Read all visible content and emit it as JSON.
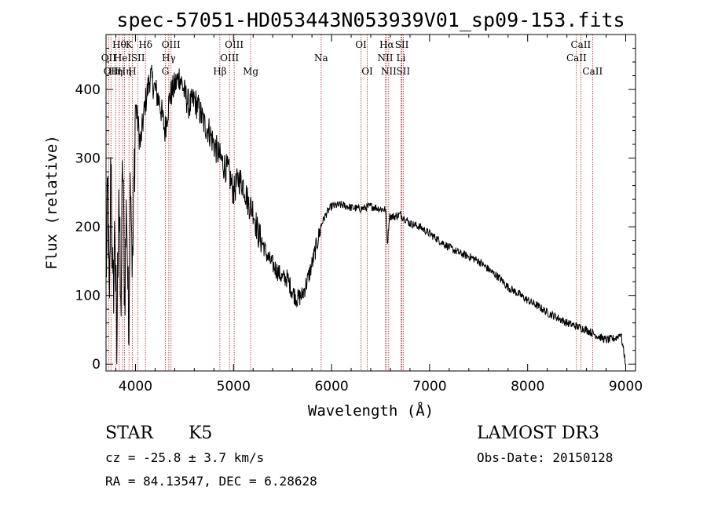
{
  "chart_data": {
    "type": "line",
    "title": "spec-57051-HD053443N053939V01_sp09-153.fits",
    "xlabel": "Wavelength (Å)",
    "ylabel": "Flux (relative)",
    "xlim": [
      3700,
      9100
    ],
    "ylim": [
      -10,
      480
    ],
    "x_ticks": [
      4000,
      5000,
      6000,
      7000,
      8000,
      9000
    ],
    "y_ticks": [
      0,
      100,
      200,
      300,
      400
    ],
    "grid": false,
    "series": [
      {
        "name": "flux",
        "anchors": [
          [
            3700,
            130
          ],
          [
            3720,
            250
          ],
          [
            3735,
            50
          ],
          [
            3750,
            330
          ],
          [
            3770,
            80
          ],
          [
            3790,
            200
          ],
          [
            3810,
            10
          ],
          [
            3830,
            280
          ],
          [
            3850,
            60
          ],
          [
            3870,
            300
          ],
          [
            3890,
            100
          ],
          [
            3910,
            240
          ],
          [
            3930,
            40
          ],
          [
            3950,
            310
          ],
          [
            3970,
            130
          ],
          [
            4000,
            380
          ],
          [
            4050,
            320
          ],
          [
            4100,
            380
          ],
          [
            4150,
            420
          ],
          [
            4200,
            400
          ],
          [
            4250,
            380
          ],
          [
            4300,
            340
          ],
          [
            4350,
            390
          ],
          [
            4400,
            405
          ],
          [
            4450,
            420
          ],
          [
            4500,
            395
          ],
          [
            4550,
            375
          ],
          [
            4600,
            385
          ],
          [
            4650,
            370
          ],
          [
            4700,
            350
          ],
          [
            4750,
            340
          ],
          [
            4800,
            320
          ],
          [
            4850,
            305
          ],
          [
            4900,
            290
          ],
          [
            4950,
            280
          ],
          [
            5000,
            250
          ],
          [
            5050,
            270
          ],
          [
            5100,
            262
          ],
          [
            5150,
            235
          ],
          [
            5200,
            225
          ],
          [
            5250,
            190
          ],
          [
            5300,
            175
          ],
          [
            5350,
            155
          ],
          [
            5400,
            145
          ],
          [
            5450,
            135
          ],
          [
            5500,
            125
          ],
          [
            5550,
            125
          ],
          [
            5600,
            105
          ],
          [
            5650,
            95
          ],
          [
            5700,
            100
          ],
          [
            5750,
            120
          ],
          [
            5800,
            145
          ],
          [
            5850,
            175
          ],
          [
            5900,
            205
          ],
          [
            5950,
            220
          ],
          [
            6000,
            230
          ],
          [
            6100,
            232
          ],
          [
            6200,
            228
          ],
          [
            6300,
            226
          ],
          [
            6400,
            230
          ],
          [
            6500,
            226
          ],
          [
            6550,
            225
          ],
          [
            6570,
            175
          ],
          [
            6590,
            215
          ],
          [
            6650,
            215
          ],
          [
            6700,
            218
          ],
          [
            6800,
            205
          ],
          [
            6900,
            200
          ],
          [
            7000,
            190
          ],
          [
            7100,
            180
          ],
          [
            7200,
            170
          ],
          [
            7300,
            162
          ],
          [
            7400,
            157
          ],
          [
            7500,
            150
          ],
          [
            7600,
            138
          ],
          [
            7700,
            127
          ],
          [
            7800,
            112
          ],
          [
            7900,
            103
          ],
          [
            8000,
            93
          ],
          [
            8100,
            85
          ],
          [
            8200,
            75
          ],
          [
            8300,
            68
          ],
          [
            8400,
            60
          ],
          [
            8500,
            55
          ],
          [
            8600,
            50
          ],
          [
            8700,
            42
          ],
          [
            8800,
            35
          ],
          [
            8900,
            38
          ],
          [
            8950,
            45
          ],
          [
            9000,
            0
          ]
        ]
      }
    ],
    "line_markers": [
      {
        "wavelength": 3727,
        "label": "OII",
        "row": 2
      },
      {
        "wavelength": 3750,
        "label": "OII",
        "row": 3
      },
      {
        "wavelength": 3798,
        "label": "Hη",
        "row": 3
      },
      {
        "wavelength": 3835,
        "label": "Hθ",
        "row": 1
      },
      {
        "wavelength": 3869,
        "label": "HeI",
        "row": 2
      },
      {
        "wavelength": 3889,
        "label": "Hη",
        "row": 3
      },
      {
        "wavelength": 3934,
        "label": "K",
        "row": 1
      },
      {
        "wavelength": 3968,
        "label": "H",
        "row": 3
      },
      {
        "wavelength": 4026,
        "label": "SII",
        "row": 2
      },
      {
        "wavelength": 4102,
        "label": "Hδ",
        "row": 1
      },
      {
        "wavelength": 4305,
        "label": "G",
        "row": 3
      },
      {
        "wavelength": 4340,
        "label": "Hγ",
        "row": 2
      },
      {
        "wavelength": 4363,
        "label": "OIII",
        "row": 1
      },
      {
        "wavelength": 4861,
        "label": "Hβ",
        "row": 3
      },
      {
        "wavelength": 4959,
        "label": "OIII",
        "row": 2
      },
      {
        "wavelength": 5007,
        "label": "OIII",
        "row": 1
      },
      {
        "wavelength": 5175,
        "label": "Mg",
        "row": 3
      },
      {
        "wavelength": 5894,
        "label": "Na",
        "row": 2
      },
      {
        "wavelength": 6300,
        "label": "OI",
        "row": 1
      },
      {
        "wavelength": 6364,
        "label": "OI",
        "row": 3
      },
      {
        "wavelength": 6548,
        "label": "NII",
        "row": 2
      },
      {
        "wavelength": 6563,
        "label": "Hα",
        "row": 1
      },
      {
        "wavelength": 6583,
        "label": "NII",
        "row": 3
      },
      {
        "wavelength": 6708,
        "label": "Li",
        "row": 2
      },
      {
        "wavelength": 6717,
        "label": "SII",
        "row": 1
      },
      {
        "wavelength": 6731,
        "label": "SII",
        "row": 3
      },
      {
        "wavelength": 8498,
        "label": "CaII",
        "row": 2
      },
      {
        "wavelength": 8542,
        "label": "CaII",
        "row": 1
      },
      {
        "wavelength": 8662,
        "label": "CaII",
        "row": 3
      }
    ]
  },
  "info": {
    "object_class": "STAR",
    "subclass": "K5",
    "survey": "LAMOST DR3",
    "cz": "cz = -25.8 ± 3.7 km/s",
    "obs_date": "Obs-Date: 20150128",
    "radec": "RA =  84.13547, DEC =   6.28628"
  },
  "colors": {
    "spectrum": "#000000",
    "marker": "#b22222",
    "axes": "#000000",
    "background": "#ffffff"
  }
}
